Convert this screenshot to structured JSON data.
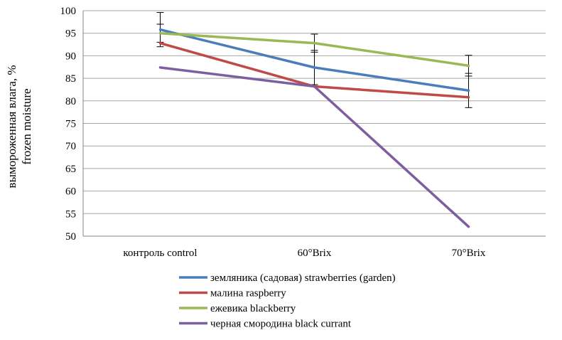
{
  "chart_data": {
    "type": "line",
    "title": "",
    "xlabel": "",
    "ylabel_line1": "вымороженная влага, %",
    "ylabel_line2": "frozen moisture",
    "categories": [
      "контроль control",
      "60°Brix",
      "70°Brix"
    ],
    "ylim": [
      50,
      100
    ],
    "yticks": [
      50,
      55,
      60,
      65,
      70,
      75,
      80,
      85,
      90,
      95,
      100
    ],
    "yticks_labels": [
      "50",
      "55",
      "60",
      "65",
      "70",
      "75",
      "80",
      "85",
      "90",
      "95",
      "100"
    ],
    "grid": true,
    "legend_position": "bottom",
    "series": [
      {
        "name": "земляника (садовая) strawberries (garden)",
        "color": "#4a7ebb",
        "values": [
          95.8,
          87.4,
          82.3
        ],
        "errors": [
          3.8,
          3.8,
          3.8
        ]
      },
      {
        "name": "малина raspberry",
        "color": "#be4b48",
        "values": [
          92.8,
          83.2,
          80.8
        ],
        "errors": [
          0,
          0,
          0
        ]
      },
      {
        "name": "ежевика blackberry",
        "color": "#98b954",
        "values": [
          95.0,
          92.8,
          87.8
        ],
        "errors": [
          2.0,
          2.0,
          2.3
        ]
      },
      {
        "name": "черная смородина black currant",
        "color": "#7d5fa0",
        "values": [
          87.4,
          83.2,
          52.1
        ],
        "errors": [
          0,
          0,
          0
        ]
      }
    ]
  }
}
